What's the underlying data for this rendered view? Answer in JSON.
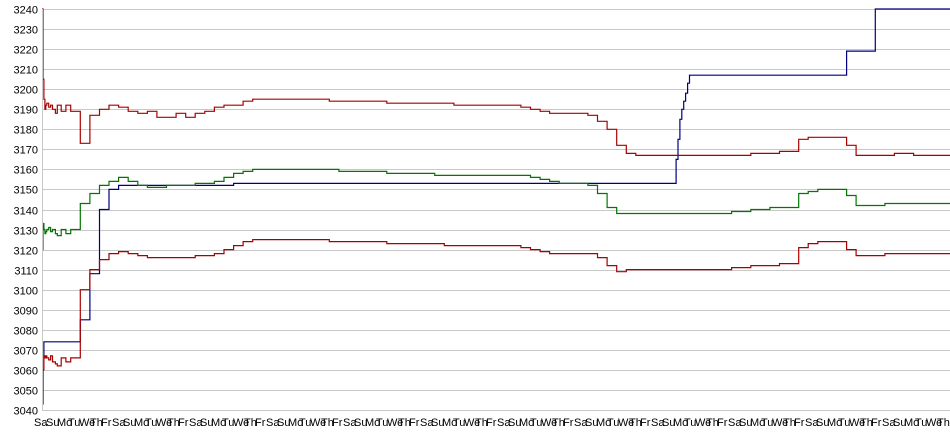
{
  "chart_data": {
    "type": "line",
    "title": "",
    "xlabel": "",
    "ylabel": "",
    "ylim": [
      3040,
      3240
    ],
    "y_ticks": [
      3040,
      3050,
      3060,
      3070,
      3080,
      3090,
      3100,
      3110,
      3120,
      3130,
      3140,
      3150,
      3160,
      3170,
      3180,
      3190,
      3200,
      3210,
      3220,
      3230,
      3240
    ],
    "grid": true,
    "legend": "none",
    "x_tick_labels_note": "Overlapping, illegible date labels; first reads \"Sa\"",
    "x_tick_first_label": "Sa",
    "x": [
      0,
      1,
      2,
      3,
      4,
      5,
      7,
      9,
      11,
      14,
      16,
      20,
      25,
      30,
      40,
      50,
      60,
      70,
      80,
      90,
      100,
      110,
      120,
      130,
      140,
      150,
      160,
      170,
      180,
      190,
      200,
      210,
      220,
      230,
      240,
      250,
      260,
      270,
      280,
      290,
      300,
      310,
      320,
      330,
      340,
      350,
      360,
      370,
      380,
      390,
      400,
      410,
      420,
      430,
      440,
      450,
      460,
      470,
      480,
      490,
      500,
      510,
      520,
      530,
      540,
      550,
      560,
      570,
      580,
      590,
      600,
      610,
      620,
      630,
      640,
      650,
      660,
      662,
      664,
      666,
      668,
      670,
      672,
      674,
      676,
      680,
      690,
      700,
      710,
      720,
      730,
      740,
      750,
      760,
      770,
      780,
      790,
      800,
      810,
      820,
      830,
      840,
      850,
      860,
      870,
      880,
      890,
      900,
      910,
      920,
      930,
      940,
      948
    ],
    "series": [
      {
        "color": "#000080",
        "values": [
          3043,
          3060,
          3074,
          3074,
          3074,
          3074,
          3074,
          3074,
          3074,
          3074,
          3074,
          3074,
          3074,
          3074,
          3085,
          3108,
          3140,
          3150,
          3152,
          3152,
          3152,
          3152,
          3152,
          3152,
          3152,
          3152,
          3152,
          3152,
          3152,
          3152,
          3153,
          3153,
          3153,
          3153,
          3153,
          3153,
          3153,
          3153,
          3153,
          3153,
          3153,
          3153,
          3153,
          3153,
          3153,
          3153,
          3153,
          3153,
          3153,
          3153,
          3153,
          3153,
          3153,
          3153,
          3153,
          3153,
          3153,
          3153,
          3153,
          3153,
          3153,
          3153,
          3153,
          3153,
          3153,
          3153,
          3153,
          3153,
          3153,
          3153,
          3153,
          3153,
          3153,
          3153,
          3153,
          3153,
          3153,
          3165,
          3175,
          3185,
          3190,
          3194,
          3198,
          3203,
          3207,
          3207,
          3207,
          3207,
          3207,
          3207,
          3207,
          3207,
          3207,
          3207,
          3207,
          3207,
          3207,
          3207,
          3207,
          3207,
          3207,
          3219,
          3219,
          3219,
          3240,
          3240,
          3240,
          3240,
          3240,
          3240,
          3240,
          3240,
          3240
        ]
      },
      {
        "color": "#aa0000",
        "values": [
          3240,
          3205,
          3195,
          3190,
          3192,
          3193,
          3191,
          3192,
          3190,
          3188,
          3192,
          3189,
          3192,
          3189,
          3173,
          3187,
          3190,
          3192,
          3191,
          3189,
          3188,
          3189,
          3186,
          3186,
          3188,
          3186,
          3188,
          3189,
          3191,
          3192,
          3192,
          3194,
          3195,
          3195,
          3195,
          3195,
          3195,
          3195,
          3195,
          3195,
          3194,
          3194,
          3194,
          3194,
          3194,
          3194,
          3193,
          3193,
          3193,
          3193,
          3193,
          3193,
          3193,
          3192,
          3192,
          3192,
          3192,
          3192,
          3192,
          3192,
          3191,
          3190,
          3189,
          3188,
          3188,
          3188,
          3188,
          3187,
          3184,
          3180,
          3172,
          3168,
          3167,
          3167,
          3167,
          3167,
          3167,
          3167,
          3167,
          3167,
          3167,
          3167,
          3167,
          3167,
          3167,
          3167,
          3167,
          3167,
          3167,
          3167,
          3167,
          3168,
          3168,
          3168,
          3169,
          3169,
          3175,
          3176,
          3176,
          3176,
          3176,
          3172,
          3167,
          3167,
          3167,
          3167,
          3168,
          3168,
          3167,
          3167,
          3167,
          3167,
          3167
        ]
      },
      {
        "color": "#007700",
        "values": [
          3120,
          3133,
          3130,
          3128,
          3129,
          3130,
          3131,
          3129,
          3130,
          3128,
          3127,
          3130,
          3128,
          3130,
          3143,
          3148,
          3152,
          3154,
          3156,
          3154,
          3152,
          3151,
          3151,
          3152,
          3152,
          3152,
          3153,
          3153,
          3154,
          3156,
          3158,
          3159,
          3160,
          3160,
          3160,
          3160,
          3160,
          3160,
          3160,
          3160,
          3160,
          3159,
          3159,
          3159,
          3159,
          3159,
          3158,
          3158,
          3158,
          3158,
          3158,
          3157,
          3157,
          3157,
          3157,
          3157,
          3157,
          3157,
          3157,
          3157,
          3157,
          3156,
          3155,
          3154,
          3153,
          3153,
          3153,
          3152,
          3148,
          3141,
          3138,
          3138,
          3138,
          3138,
          3138,
          3138,
          3138,
          3138,
          3138,
          3138,
          3138,
          3138,
          3138,
          3138,
          3138,
          3138,
          3138,
          3138,
          3138,
          3139,
          3139,
          3140,
          3140,
          3141,
          3141,
          3141,
          3148,
          3149,
          3150,
          3150,
          3150,
          3147,
          3142,
          3142,
          3142,
          3143,
          3143,
          3143,
          3143,
          3143,
          3143,
          3143,
          3143
        ]
      },
      {
        "color": "#aa0000",
        "values": [
          3044,
          3060,
          3067,
          3066,
          3067,
          3066,
          3065,
          3067,
          3064,
          3063,
          3062,
          3066,
          3064,
          3066,
          3100,
          3110,
          3115,
          3118,
          3119,
          3118,
          3117,
          3116,
          3116,
          3116,
          3116,
          3116,
          3117,
          3117,
          3118,
          3120,
          3122,
          3124,
          3125,
          3125,
          3125,
          3125,
          3125,
          3125,
          3125,
          3125,
          3124,
          3124,
          3124,
          3124,
          3124,
          3124,
          3123,
          3123,
          3123,
          3123,
          3123,
          3123,
          3122,
          3122,
          3122,
          3122,
          3122,
          3122,
          3122,
          3122,
          3121,
          3120,
          3119,
          3118,
          3118,
          3118,
          3118,
          3118,
          3116,
          3112,
          3109,
          3110,
          3110,
          3110,
          3110,
          3110,
          3110,
          3110,
          3110,
          3110,
          3110,
          3110,
          3110,
          3110,
          3110,
          3110,
          3110,
          3110,
          3110,
          3111,
          3111,
          3112,
          3112,
          3112,
          3113,
          3113,
          3121,
          3123,
          3124,
          3124,
          3124,
          3120,
          3117,
          3117,
          3117,
          3118,
          3118,
          3118,
          3118,
          3118,
          3118,
          3118,
          3118
        ]
      }
    ]
  }
}
